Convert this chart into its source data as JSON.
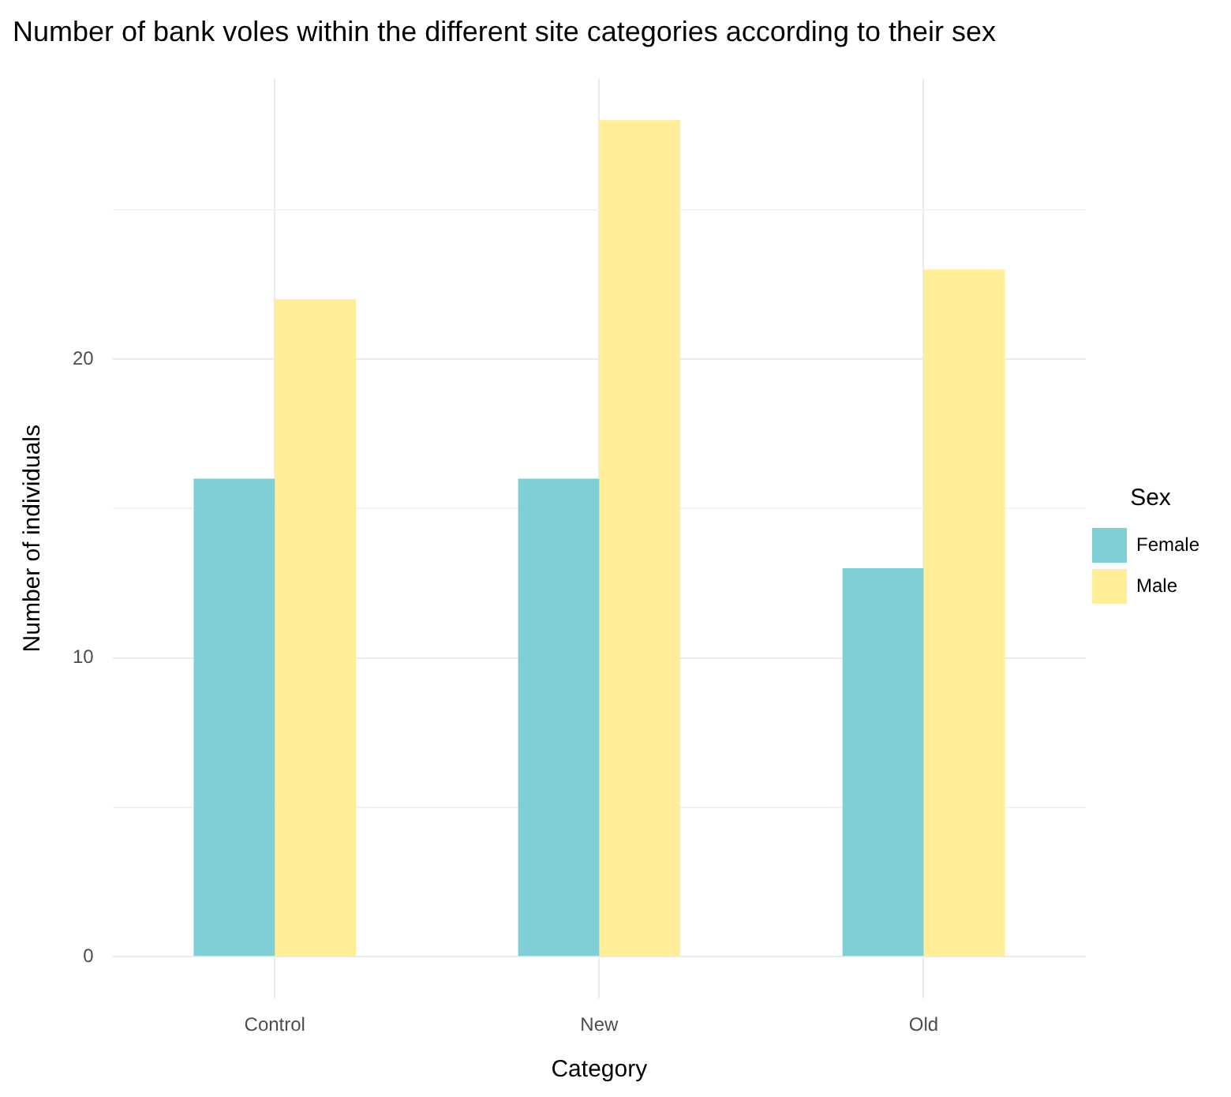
{
  "chart_data": {
    "type": "bar",
    "title": "Number of bank voles within the different site categories according to their sex",
    "xlabel": "Category",
    "ylabel": "Number of individuals",
    "legend_title": "Sex",
    "categories": [
      "Control",
      "New",
      "Old"
    ],
    "series": [
      {
        "name": "Female",
        "color": "#80cfd6",
        "values": [
          16,
          16,
          13
        ]
      },
      {
        "name": "Male",
        "color": "#ffed98",
        "values": [
          22,
          28,
          23
        ]
      }
    ],
    "ylim": [
      -1.4,
      29.4
    ],
    "yticks": [
      0,
      {
        "value": 5,
        "label": null
      },
      10,
      {
        "value": 15,
        "label": null
      },
      20,
      {
        "value": 25,
        "label": null
      }
    ],
    "grid": true,
    "legend": "right"
  }
}
